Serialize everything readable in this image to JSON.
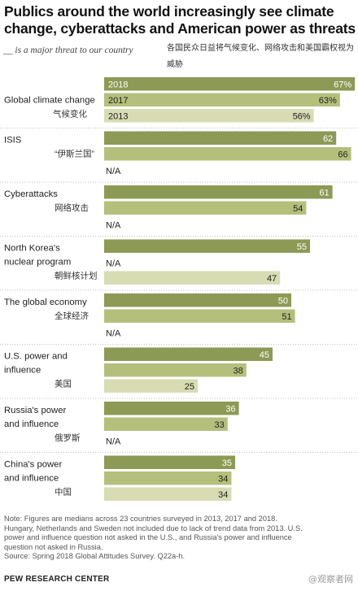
{
  "header": {
    "title": "Publics around the world increasingly see climate change, cyberattacks and American power as threats",
    "subtitle_en": "__ is a major threat to our country",
    "subtitle_zh": "各国民众日益将气候变化、网络攻击和美国霸权视为威胁"
  },
  "footer": {
    "notes": [
      "Note: Figures are medians across 23 countries surveyed in 2013, 2017 and 2018.",
      "Hungary, Netherlands and Sweden not included due to lack of trend data from 2013. U.S.",
      "power and influence question not asked in the U.S., and Russia's power and influence",
      "question not asked in Russia."
    ],
    "source": "Source: Spring 2018 Global Attitudes Survey. Q22a-h.",
    "brand": "PEW RESEARCH CENTER",
    "watermark": "@观察者网"
  },
  "colors": {
    "y2018": "#8c9a55",
    "y2017": "#b4bf7c",
    "y2013": "#d7dcb3"
  },
  "chart_data": {
    "type": "bar",
    "orientation": "horizontal",
    "xlim": [
      0,
      100
    ],
    "series": [
      {
        "name": "2018",
        "values": [
          67,
          62,
          61,
          55,
          50,
          45,
          36,
          35
        ]
      },
      {
        "name": "2017",
        "values": [
          63,
          66,
          54,
          null,
          51,
          38,
          33,
          34
        ]
      },
      {
        "name": "2013",
        "values": [
          56,
          null,
          null,
          47,
          null,
          25,
          null,
          34
        ]
      }
    ],
    "na_label": "N/A",
    "groups": [
      {
        "label_en": [
          "Global climate change"
        ],
        "label_zh": "气候变化",
        "values": [
          {
            "year": "2018",
            "v": 67,
            "text": "67%"
          },
          {
            "year": "2017",
            "v": 63,
            "text": "63%"
          },
          {
            "year": "2013",
            "v": 56,
            "text": "56%"
          }
        ]
      },
      {
        "label_en": [
          "ISIS"
        ],
        "label_zh": "“伊斯兰国”",
        "values": [
          {
            "year": "2018",
            "v": 62,
            "text": "62"
          },
          {
            "year": "2017",
            "v": 66,
            "text": "66"
          },
          {
            "year": "2013",
            "v": null,
            "text": ""
          }
        ]
      },
      {
        "label_en": [
          "Cyberattacks"
        ],
        "label_zh": "网络攻击",
        "values": [
          {
            "year": "2018",
            "v": 61,
            "text": "61"
          },
          {
            "year": "2017",
            "v": 54,
            "text": "54"
          },
          {
            "year": "2013",
            "v": null,
            "text": ""
          }
        ]
      },
      {
        "label_en": [
          "North Korea's",
          "nuclear program"
        ],
        "label_zh": "朝鲜核计划",
        "values": [
          {
            "year": "2018",
            "v": 55,
            "text": "55"
          },
          {
            "year": "2017",
            "v": null,
            "text": ""
          },
          {
            "year": "2013",
            "v": 47,
            "text": "47"
          }
        ]
      },
      {
        "label_en": [
          "The global economy"
        ],
        "label_zh": "全球经济",
        "values": [
          {
            "year": "2018",
            "v": 50,
            "text": "50"
          },
          {
            "year": "2017",
            "v": 51,
            "text": "51"
          },
          {
            "year": "2013",
            "v": null,
            "text": ""
          }
        ]
      },
      {
        "label_en": [
          "U.S. power and",
          "influence"
        ],
        "label_zh": "美国",
        "values": [
          {
            "year": "2018",
            "v": 45,
            "text": "45"
          },
          {
            "year": "2017",
            "v": 38,
            "text": "38"
          },
          {
            "year": "2013",
            "v": 25,
            "text": "25"
          }
        ]
      },
      {
        "label_en": [
          "Russia's power",
          "and influence"
        ],
        "label_zh": "俄罗斯",
        "values": [
          {
            "year": "2018",
            "v": 36,
            "text": "36"
          },
          {
            "year": "2017",
            "v": 33,
            "text": "33"
          },
          {
            "year": "2013",
            "v": null,
            "text": ""
          }
        ]
      },
      {
        "label_en": [
          "China's power",
          "and influence"
        ],
        "label_zh": "中国",
        "values": [
          {
            "year": "2018",
            "v": 35,
            "text": "35"
          },
          {
            "year": "2017",
            "v": 34,
            "text": "34"
          },
          {
            "year": "2013",
            "v": 34,
            "text": "34"
          }
        ]
      }
    ]
  }
}
